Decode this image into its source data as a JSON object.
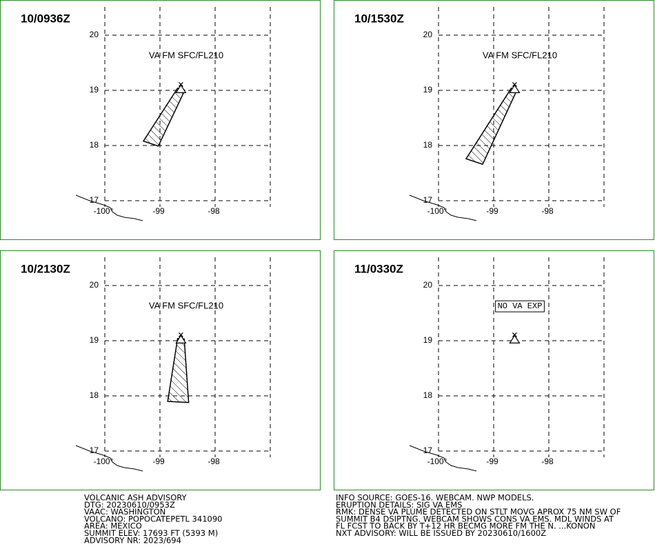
{
  "panels": [
    {
      "time": "10/0936Z",
      "label": "VA FM SFC/FL210",
      "plume": [
        [
          -98.68,
          19.04
        ],
        [
          -98.55,
          19.0
        ],
        [
          -99.03,
          17.99
        ],
        [
          -99.3,
          18.08
        ]
      ]
    },
    {
      "time": "10/1530Z",
      "label": "VA FM SFC/FL210",
      "plume": [
        [
          -98.68,
          19.04
        ],
        [
          -98.58,
          19.0
        ],
        [
          -99.2,
          17.66
        ],
        [
          -99.5,
          17.76
        ]
      ]
    },
    {
      "time": "10/2130Z",
      "label": "VA FM SFC/FL210",
      "plume": [
        [
          -98.68,
          19.04
        ],
        [
          -98.56,
          19.03
        ],
        [
          -98.48,
          17.88
        ],
        [
          -98.86,
          17.9
        ]
      ]
    },
    {
      "time": "11/0330Z",
      "label": "NO VA EXP",
      "label_boxed": true,
      "plume": null
    }
  ],
  "lon_lim": [
    -100,
    -97
  ],
  "lat_lim": [
    17,
    20
  ],
  "lat_ticks": [
    20,
    19,
    18,
    17
  ],
  "lon_ticks": [
    {
      "value": -100,
      "label": "-100°"
    },
    -99,
    -98
  ],
  "volcano": [
    -98.62,
    19.02
  ],
  "footer_left": [
    "VOLCANIC ASH ADVISORY",
    "DTG: 20230610/0953Z",
    "VAAC: WASHINGTON",
    "VOLCANO: POPOCATEPETL 341090",
    "AREA: MEXICO",
    "SUMMIT ELEV: 17693 FT (5393 M)",
    "ADVISORY NR: 2023/694"
  ],
  "footer_right": [
    "INFO SOURCE: GOES-16. WEBCAM. NWP MODELS.",
    "ERUPTION DETAILS: SIG VA EMS",
    "RMK: DENSE VA PLUME DETECTED ON STLT MOVG APROX 75 NM SW OF",
    "SUMMIT B4 DSIPTNG. WEBCAM SHOWS CONS VA EMS. MDL WINDS AT",
    "FL FCST TO BACK BY T+12 HR BECMG MORE FM THE N. ...KONON",
    "NXT ADVISORY: WILL BE ISSUED BY 20230610/1600Z"
  ]
}
